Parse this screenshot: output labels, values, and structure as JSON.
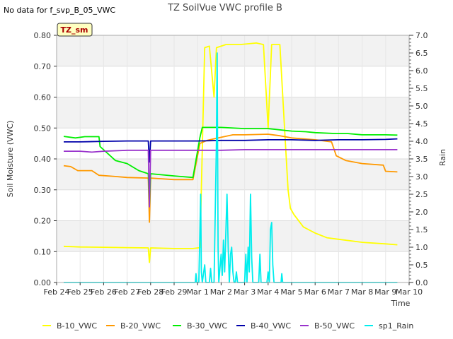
{
  "chart_data": {
    "type": "line",
    "title": "TZ SoilVue VWC profile B",
    "note": "No data for f_svp_B_05_VWC",
    "badge": "TZ_sm",
    "xlabel": "Time",
    "ylabel": "Soil Moisture (VWC)",
    "y2label": "Rain",
    "ylim": [
      0,
      0.8
    ],
    "y2lim": [
      0,
      7.0
    ],
    "xlim": [
      0,
      15
    ],
    "x_unit": "days since Feb 24",
    "grid": true,
    "x_ticks": [
      {
        "v": 0,
        "label": "Feb 24"
      },
      {
        "v": 1,
        "label": "Feb 25"
      },
      {
        "v": 2,
        "label": "Feb 26"
      },
      {
        "v": 3,
        "label": "Feb 27"
      },
      {
        "v": 4,
        "label": "Feb 28"
      },
      {
        "v": 5,
        "label": "Feb 29"
      },
      {
        "v": 6,
        "label": "Mar 1"
      },
      {
        "v": 7,
        "label": "Mar 2"
      },
      {
        "v": 8,
        "label": "Mar 3"
      },
      {
        "v": 9,
        "label": "Mar 4"
      },
      {
        "v": 10,
        "label": "Mar 5"
      },
      {
        "v": 11,
        "label": "Mar 6"
      },
      {
        "v": 12,
        "label": "Mar 7"
      },
      {
        "v": 13,
        "label": "Mar 8"
      },
      {
        "v": 14,
        "label": "Mar 9"
      },
      {
        "v": 15,
        "label": "Mar 10"
      }
    ],
    "y_ticks": [
      {
        "v": 0.0,
        "label": "0.00"
      },
      {
        "v": 0.1,
        "label": "0.10"
      },
      {
        "v": 0.2,
        "label": "0.20"
      },
      {
        "v": 0.3,
        "label": "0.30"
      },
      {
        "v": 0.4,
        "label": "0.40"
      },
      {
        "v": 0.5,
        "label": "0.50"
      },
      {
        "v": 0.6,
        "label": "0.60"
      },
      {
        "v": 0.7,
        "label": "0.70"
      },
      {
        "v": 0.8,
        "label": "0.80"
      }
    ],
    "y2_ticks": [
      {
        "v": 0.0,
        "label": "0.0"
      },
      {
        "v": 0.5,
        "label": "0.5"
      },
      {
        "v": 1.0,
        "label": "1.0"
      },
      {
        "v": 1.5,
        "label": "1.5"
      },
      {
        "v": 2.0,
        "label": "2.0"
      },
      {
        "v": 2.5,
        "label": "2.5"
      },
      {
        "v": 3.0,
        "label": "3.0"
      },
      {
        "v": 3.5,
        "label": "3.5"
      },
      {
        "v": 4.0,
        "label": "4.0"
      },
      {
        "v": 4.5,
        "label": "4.5"
      },
      {
        "v": 5.0,
        "label": "5.0"
      },
      {
        "v": 5.5,
        "label": "5.5"
      },
      {
        "v": 6.0,
        "label": "6.0"
      },
      {
        "v": 6.5,
        "label": "6.5"
      },
      {
        "v": 7.0,
        "label": "7.0"
      }
    ],
    "series": [
      {
        "name": "B-10_VWC",
        "color": "#ffff00",
        "axis": "left",
        "points": [
          [
            0.3,
            0.117
          ],
          [
            1.0,
            0.115
          ],
          [
            2.0,
            0.114
          ],
          [
            3.0,
            0.113
          ],
          [
            3.9,
            0.112
          ],
          [
            3.95,
            0.065
          ],
          [
            4.0,
            0.112
          ],
          [
            5.0,
            0.11
          ],
          [
            5.8,
            0.11
          ],
          [
            6.1,
            0.113
          ],
          [
            6.3,
            0.76
          ],
          [
            6.5,
            0.765
          ],
          [
            6.7,
            0.6
          ],
          [
            6.8,
            0.76
          ],
          [
            7.2,
            0.77
          ],
          [
            7.8,
            0.77
          ],
          [
            8.5,
            0.775
          ],
          [
            8.8,
            0.77
          ],
          [
            9.0,
            0.5
          ],
          [
            9.15,
            0.77
          ],
          [
            9.5,
            0.77
          ],
          [
            9.7,
            0.5
          ],
          [
            9.85,
            0.3
          ],
          [
            9.95,
            0.24
          ],
          [
            10.1,
            0.22
          ],
          [
            10.5,
            0.18
          ],
          [
            11.0,
            0.16
          ],
          [
            11.5,
            0.145
          ],
          [
            12.0,
            0.14
          ],
          [
            13.0,
            0.13
          ],
          [
            14.0,
            0.125
          ],
          [
            14.5,
            0.122
          ]
        ]
      },
      {
        "name": "B-20_VWC",
        "color": "#ff9900",
        "axis": "left",
        "points": [
          [
            0.3,
            0.378
          ],
          [
            0.6,
            0.375
          ],
          [
            0.9,
            0.362
          ],
          [
            1.5,
            0.362
          ],
          [
            1.8,
            0.347
          ],
          [
            2.5,
            0.343
          ],
          [
            3.0,
            0.34
          ],
          [
            3.9,
            0.338
          ],
          [
            3.95,
            0.195
          ],
          [
            4.0,
            0.338
          ],
          [
            5.0,
            0.333
          ],
          [
            5.8,
            0.333
          ],
          [
            6.1,
            0.45
          ],
          [
            6.4,
            0.46
          ],
          [
            7.0,
            0.47
          ],
          [
            7.5,
            0.478
          ],
          [
            8.0,
            0.478
          ],
          [
            9.0,
            0.48
          ],
          [
            9.5,
            0.475
          ],
          [
            10.0,
            0.468
          ],
          [
            11.0,
            0.462
          ],
          [
            11.7,
            0.455
          ],
          [
            11.9,
            0.41
          ],
          [
            12.3,
            0.395
          ],
          [
            13.0,
            0.385
          ],
          [
            13.9,
            0.38
          ],
          [
            14.0,
            0.36
          ],
          [
            14.5,
            0.358
          ]
        ]
      },
      {
        "name": "B-30_VWC",
        "color": "#00ee00",
        "axis": "left",
        "points": [
          [
            0.3,
            0.473
          ],
          [
            0.8,
            0.468
          ],
          [
            1.2,
            0.472
          ],
          [
            1.8,
            0.472
          ],
          [
            1.85,
            0.44
          ],
          [
            2.5,
            0.395
          ],
          [
            3.0,
            0.385
          ],
          [
            3.5,
            0.362
          ],
          [
            3.9,
            0.352
          ],
          [
            3.95,
            0.25
          ],
          [
            4.0,
            0.352
          ],
          [
            5.0,
            0.345
          ],
          [
            5.8,
            0.34
          ],
          [
            6.1,
            0.47
          ],
          [
            6.2,
            0.502
          ],
          [
            7.0,
            0.502
          ],
          [
            8.0,
            0.498
          ],
          [
            9.0,
            0.498
          ],
          [
            10.0,
            0.49
          ],
          [
            10.6,
            0.488
          ],
          [
            11.0,
            0.485
          ],
          [
            11.9,
            0.482
          ],
          [
            12.4,
            0.482
          ],
          [
            13.0,
            0.478
          ],
          [
            14.0,
            0.478
          ],
          [
            14.5,
            0.477
          ]
        ]
      },
      {
        "name": "B-40_VWC",
        "color": "#0000aa",
        "axis": "left",
        "points": [
          [
            0.3,
            0.455
          ],
          [
            1.0,
            0.455
          ],
          [
            2.0,
            0.457
          ],
          [
            3.0,
            0.458
          ],
          [
            3.9,
            0.458
          ],
          [
            3.95,
            0.39
          ],
          [
            4.0,
            0.458
          ],
          [
            5.0,
            0.458
          ],
          [
            6.0,
            0.458
          ],
          [
            7.0,
            0.46
          ],
          [
            8.0,
            0.46
          ],
          [
            9.0,
            0.462
          ],
          [
            10.0,
            0.462
          ],
          [
            11.0,
            0.46
          ],
          [
            12.0,
            0.462
          ],
          [
            13.0,
            0.462
          ],
          [
            14.0,
            0.463
          ],
          [
            14.5,
            0.465
          ]
        ]
      },
      {
        "name": "B-50_VWC",
        "color": "#9933cc",
        "axis": "left",
        "points": [
          [
            0.3,
            0.425
          ],
          [
            1.0,
            0.425
          ],
          [
            1.5,
            0.422
          ],
          [
            2.0,
            0.425
          ],
          [
            3.0,
            0.428
          ],
          [
            3.9,
            0.428
          ],
          [
            3.95,
            0.245
          ],
          [
            4.0,
            0.428
          ],
          [
            5.0,
            0.428
          ],
          [
            6.0,
            0.428
          ],
          [
            7.0,
            0.428
          ],
          [
            8.0,
            0.43
          ],
          [
            9.0,
            0.43
          ],
          [
            10.0,
            0.43
          ],
          [
            11.0,
            0.43
          ],
          [
            12.0,
            0.43
          ],
          [
            13.0,
            0.43
          ],
          [
            14.0,
            0.43
          ],
          [
            14.5,
            0.43
          ]
        ]
      },
      {
        "name": "sp1_Rain",
        "color": "#00eeee",
        "axis": "right",
        "points": [
          [
            0.3,
            0.0
          ],
          [
            5.9,
            0.0
          ],
          [
            5.93,
            0.25
          ],
          [
            5.96,
            0.0
          ],
          [
            6.05,
            0.0
          ],
          [
            6.1,
            1.5
          ],
          [
            6.13,
            2.5
          ],
          [
            6.16,
            0.3
          ],
          [
            6.2,
            0.0
          ],
          [
            6.3,
            0.5
          ],
          [
            6.35,
            0.0
          ],
          [
            6.5,
            0.0
          ],
          [
            6.55,
            0.4
          ],
          [
            6.6,
            0.0
          ],
          [
            6.7,
            0.0
          ],
          [
            6.8,
            4.0
          ],
          [
            6.83,
            6.5
          ],
          [
            6.87,
            1.0
          ],
          [
            6.9,
            0.0
          ],
          [
            7.0,
            0.8
          ],
          [
            7.05,
            0.2
          ],
          [
            7.1,
            1.2
          ],
          [
            7.15,
            0.3
          ],
          [
            7.25,
            2.5
          ],
          [
            7.3,
            1.0
          ],
          [
            7.35,
            0.0
          ],
          [
            7.4,
            0.8
          ],
          [
            7.45,
            1.0
          ],
          [
            7.5,
            0.3
          ],
          [
            7.55,
            0.0
          ],
          [
            7.6,
            0.0
          ],
          [
            7.65,
            0.3
          ],
          [
            7.7,
            0.0
          ],
          [
            8.0,
            0.0
          ],
          [
            8.05,
            0.8
          ],
          [
            8.1,
            0.0
          ],
          [
            8.15,
            1.0
          ],
          [
            8.2,
            0.3
          ],
          [
            8.25,
            2.5
          ],
          [
            8.3,
            0.7
          ],
          [
            8.35,
            0.0
          ],
          [
            8.6,
            0.0
          ],
          [
            8.65,
            0.8
          ],
          [
            8.7,
            0.0
          ],
          [
            8.95,
            0.0
          ],
          [
            9.0,
            0.3
          ],
          [
            9.05,
            0.0
          ],
          [
            9.1,
            1.5
          ],
          [
            9.15,
            1.7
          ],
          [
            9.2,
            0.5
          ],
          [
            9.25,
            0.0
          ],
          [
            9.55,
            0.0
          ],
          [
            9.58,
            0.25
          ],
          [
            9.62,
            0.0
          ],
          [
            14.5,
            0.0
          ]
        ]
      }
    ]
  }
}
